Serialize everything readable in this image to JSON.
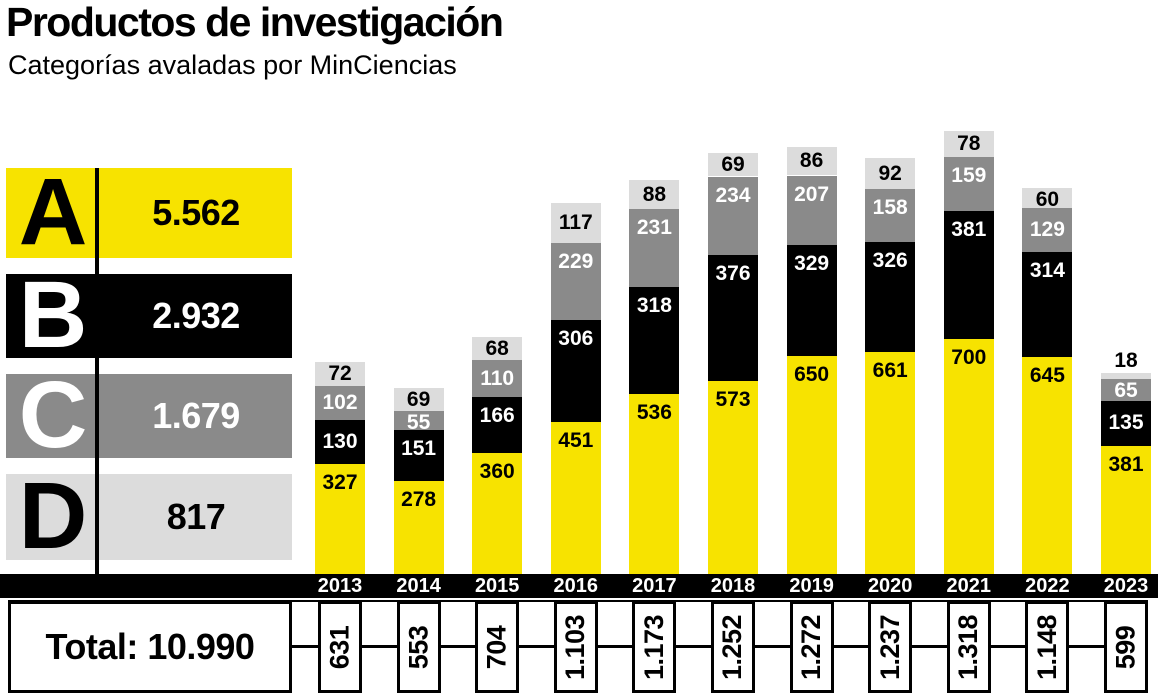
{
  "header": {
    "title": "Productos de investigación",
    "subtitle": "Categorías avaladas por MinCiencias"
  },
  "legend": {
    "items": [
      {
        "label": "A",
        "value": "5.562",
        "color": "#F7E300",
        "text_color": "#000000"
      },
      {
        "label": "B",
        "value": "2.932",
        "color": "#000000",
        "text_color": "#FFFFFF"
      },
      {
        "label": "C",
        "value": "1.679",
        "color": "#8A8A8A",
        "text_color": "#FFFFFF"
      },
      {
        "label": "D",
        "value": "817",
        "color": "#DCDCDC",
        "text_color": "#000000"
      }
    ]
  },
  "total_box": {
    "label": "Total: 10.990"
  },
  "chart_data": {
    "type": "bar",
    "stacked": true,
    "title": "Productos de investigación",
    "subtitle": "Categorías avaladas por MinCiencias",
    "legend_position": "left",
    "value_labels": "on-segments",
    "grid": false,
    "ylim": [
      0,
      1318
    ],
    "categories": [
      "2013",
      "2014",
      "2015",
      "2016",
      "2017",
      "2018",
      "2019",
      "2020",
      "2021",
      "2022",
      "2023"
    ],
    "series": [
      {
        "name": "A",
        "color": "#F7E300",
        "label_color": "#000000",
        "total": 5562,
        "values": [
          327,
          278,
          360,
          451,
          536,
          573,
          650,
          661,
          700,
          645,
          381
        ]
      },
      {
        "name": "B",
        "color": "#000000",
        "label_color": "#FFFFFF",
        "total": 2932,
        "values": [
          130,
          151,
          166,
          306,
          318,
          376,
          329,
          326,
          381,
          314,
          135
        ]
      },
      {
        "name": "C",
        "color": "#8A8A8A",
        "label_color": "#FFFFFF",
        "total": 1679,
        "values": [
          102,
          55,
          110,
          229,
          231,
          234,
          207,
          158,
          159,
          129,
          65
        ]
      },
      {
        "name": "D",
        "color": "#DCDCDC",
        "label_color": "#000000",
        "total": 817,
        "values": [
          72,
          69,
          68,
          117,
          88,
          69,
          86,
          92,
          78,
          60,
          18
        ]
      }
    ],
    "year_totals": [
      "631",
      "553",
      "704",
      "1.103",
      "1.173",
      "1.252",
      "1.272",
      "1.237",
      "1.318",
      "1.148",
      "599"
    ],
    "grand_total": 10990
  }
}
